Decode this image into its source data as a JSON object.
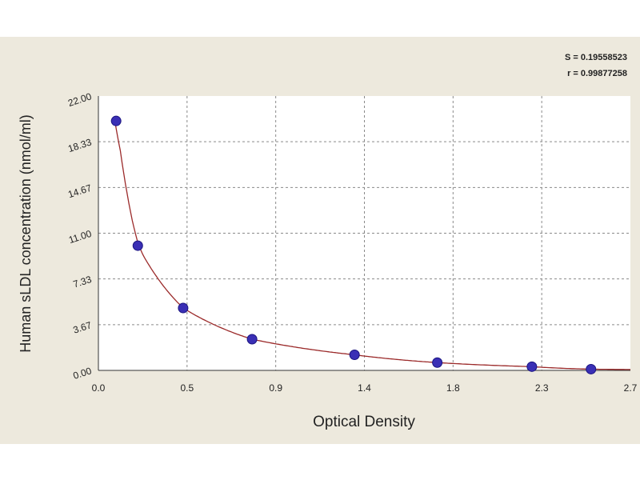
{
  "chart_data": {
    "type": "scatter",
    "title": "",
    "xlabel": "Optical Density",
    "ylabel": "Human sLDL concentration (nmol/ml)",
    "x_ticks": [
      "0.0",
      "0.5",
      "0.9",
      "1.4",
      "1.8",
      "2.3",
      "2.7"
    ],
    "y_ticks": [
      "0.00",
      "3.67",
      "7.33",
      "11.00",
      "14.67",
      "18.33",
      "22.00"
    ],
    "xlim": [
      0,
      2.7
    ],
    "ylim": [
      0,
      22
    ],
    "grid": true,
    "points": [
      {
        "x": 0.09,
        "y": 20.0
      },
      {
        "x": 0.2,
        "y": 10.0
      },
      {
        "x": 0.43,
        "y": 5.0
      },
      {
        "x": 0.78,
        "y": 2.5
      },
      {
        "x": 1.3,
        "y": 1.25
      },
      {
        "x": 1.72,
        "y": 0.625
      },
      {
        "x": 2.2,
        "y": 0.3
      },
      {
        "x": 2.5,
        "y": 0.1
      }
    ],
    "fit": {
      "type": "curve",
      "color": "#9b2a2a",
      "x_range": [
        0.085,
        2.7
      ]
    },
    "marker_color": "#3a2fb5",
    "marker_edge": "#1b1580",
    "grid_color": "#8a8a8a",
    "background": "#ede9dd",
    "plot_background": "#ffffff"
  },
  "stats": {
    "s_text": "S = 0.19558523",
    "r_text": "r = 0.99877258"
  }
}
